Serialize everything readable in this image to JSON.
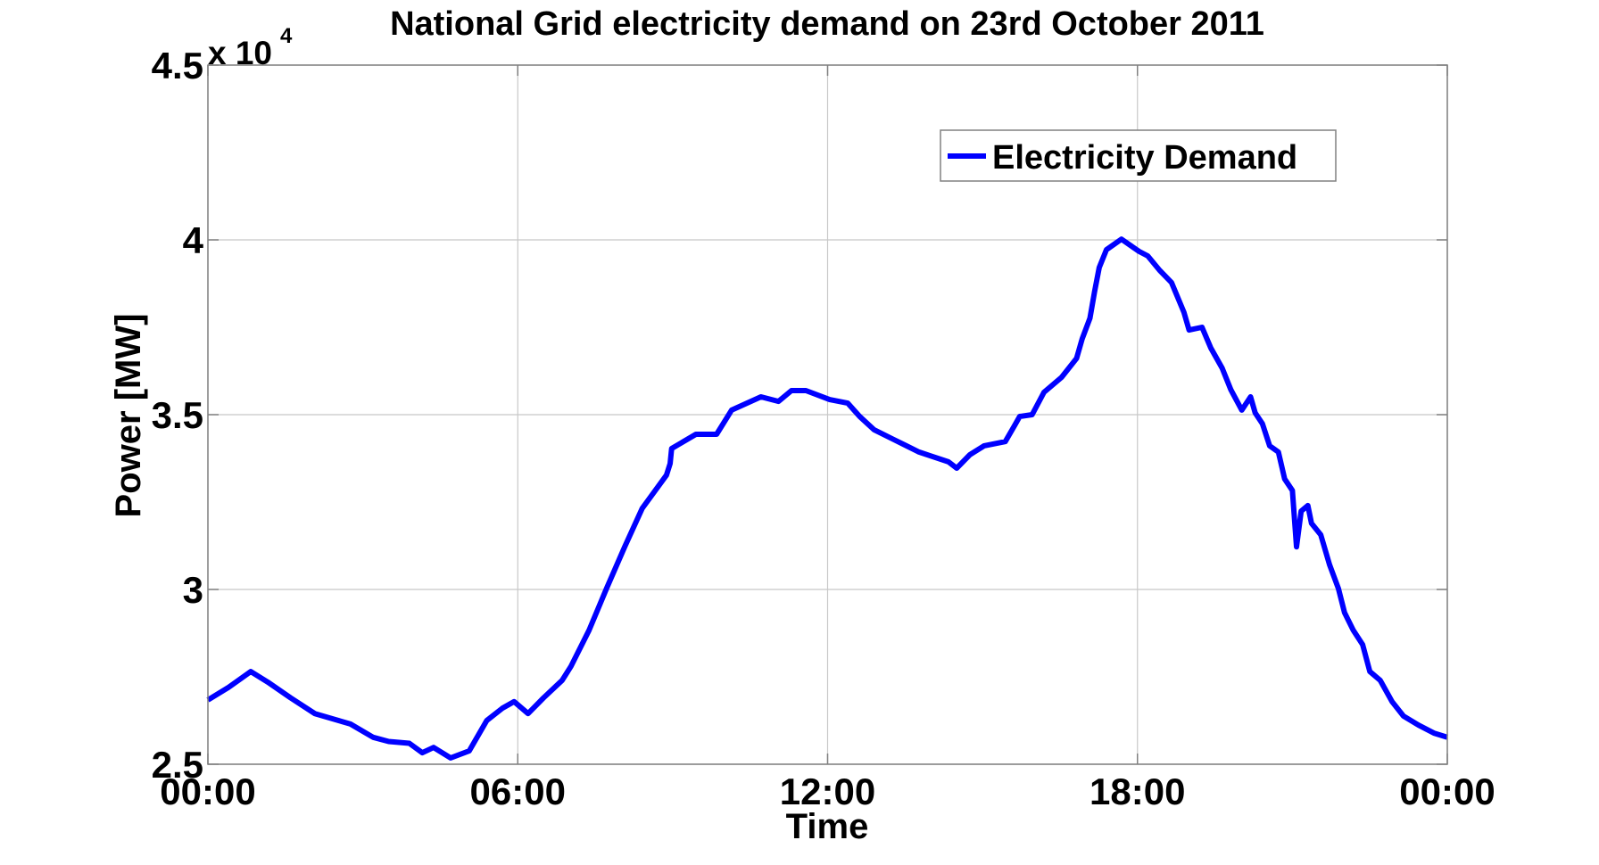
{
  "chart_data": {
    "type": "line",
    "title": "National Grid electricity demand on 23rd October 2011",
    "xlabel": "Time",
    "ylabel": "Power [MW]",
    "y_multiplier_label": "x 10",
    "y_multiplier_exponent": "4",
    "xlim_hours": [
      0,
      24
    ],
    "ylim": [
      25000,
      45000
    ],
    "x_ticks": [
      {
        "hour": 0,
        "label": "00:00"
      },
      {
        "hour": 6,
        "label": "06:00"
      },
      {
        "hour": 12,
        "label": "12:00"
      },
      {
        "hour": 18,
        "label": "18:00"
      },
      {
        "hour": 24,
        "label": "00:00"
      }
    ],
    "y_ticks": [
      {
        "value": 25000,
        "label": "2.5"
      },
      {
        "value": 30000,
        "label": "3"
      },
      {
        "value": 35000,
        "label": "3.5"
      },
      {
        "value": 40000,
        "label": "4"
      },
      {
        "value": 45000,
        "label": "4.5"
      }
    ],
    "grid": true,
    "legend_position": "upper right",
    "series": [
      {
        "name": "Electricity Demand",
        "color": "#0000ff",
        "x_hours": [
          0,
          0.4,
          0.83,
          1.16,
          1.6,
          2.07,
          2.76,
          3.2,
          3.5,
          3.9,
          4.15,
          4.37,
          4.7,
          5.06,
          5.4,
          5.7,
          5.93,
          6.2,
          6.5,
          6.86,
          7.03,
          7.38,
          7.72,
          8.07,
          8.41,
          8.88,
          8.95,
          8.98,
          9.45,
          9.85,
          10.14,
          10.71,
          11.05,
          11.3,
          11.58,
          12.04,
          12.39,
          12.62,
          12.9,
          13.25,
          13.77,
          14.34,
          14.5,
          14.75,
          15.03,
          15.44,
          15.62,
          15.72,
          15.96,
          16.19,
          16.53,
          16.82,
          16.93,
          17.08,
          17.17,
          17.26,
          17.4,
          17.69,
          18.03,
          18.2,
          18.43,
          18.66,
          18.9,
          19.0,
          19.25,
          19.42,
          19.64,
          19.81,
          20.02,
          20.19,
          20.28,
          20.42,
          20.56,
          20.73,
          20.85,
          21.0,
          21.08,
          21.17,
          21.3,
          21.37,
          21.55,
          21.72,
          21.89,
          22.01,
          22.18,
          22.36,
          22.5,
          22.7,
          22.93,
          23.15,
          23.44,
          23.74,
          24.0
        ],
        "values": [
          26840,
          27200,
          27650,
          27350,
          26900,
          26450,
          26150,
          25770,
          25650,
          25600,
          25330,
          25480,
          25180,
          25380,
          26250,
          26600,
          26790,
          26450,
          26900,
          27400,
          27800,
          28830,
          30030,
          31220,
          32320,
          33270,
          33600,
          34030,
          34440,
          34440,
          35130,
          35510,
          35380,
          35690,
          35690,
          35430,
          35330,
          34950,
          34570,
          34310,
          33930,
          33650,
          33470,
          33850,
          34110,
          34230,
          34690,
          34950,
          35000,
          35640,
          36070,
          36610,
          37170,
          37760,
          38520,
          39210,
          39720,
          40020,
          39670,
          39540,
          39130,
          38780,
          37930,
          37420,
          37500,
          36910,
          36330,
          35710,
          35130,
          35510,
          35050,
          34740,
          34110,
          33930,
          33160,
          32830,
          31220,
          32240,
          32400,
          31890,
          31560,
          30710,
          30030,
          29340,
          28830,
          28420,
          27650,
          27400,
          26790,
          26380,
          26120,
          25890,
          25770
        ]
      }
    ]
  }
}
